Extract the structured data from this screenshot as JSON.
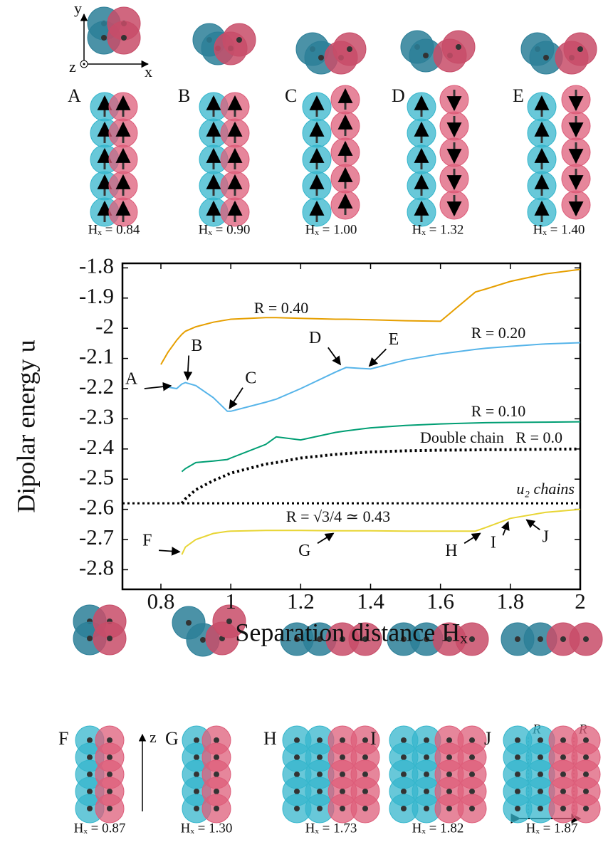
{
  "top_axes": {
    "x": "x",
    "y": "y",
    "z": "z"
  },
  "panels_top": [
    {
      "letter": "A",
      "label": "Hₓ = 0.84"
    },
    {
      "letter": "B",
      "label": "Hₓ = 0.90"
    },
    {
      "letter": "C",
      "label": "Hₓ = 1.00"
    },
    {
      "letter": "D",
      "label": "Hₓ = 1.32"
    },
    {
      "letter": "E",
      "label": "Hₓ = 1.40"
    }
  ],
  "chart_data": {
    "type": "line",
    "x_label": "Separation distance Hₓ",
    "y_label": "Dipolar energy u",
    "x": [
      0.8,
      0.82,
      0.845,
      0.86,
      0.87,
      0.9,
      0.95,
      0.99,
      1.0,
      1.1,
      1.13,
      1.2,
      1.3,
      1.33,
      1.4,
      1.5,
      1.6,
      1.7,
      1.73,
      1.8,
      1.9,
      2.0
    ],
    "series": [
      {
        "name": "R = 0.40",
        "color": "#e69f00",
        "style": "solid",
        "values": [
          -2.12,
          -2.08,
          -2.04,
          -2.02,
          -2.01,
          -1.995,
          -1.98,
          -1.972,
          -1.97,
          -1.965,
          -1.965,
          -1.967,
          -1.97,
          -1.97,
          -1.972,
          -1.975,
          -1.977,
          -1.88,
          -1.87,
          -1.845,
          -1.82,
          -1.805
        ]
      },
      {
        "name": "R = 0.20",
        "color": "#56b4e9",
        "style": "solid",
        "values": [
          null,
          -2.195,
          -2.2,
          -2.185,
          -2.18,
          -2.19,
          -2.23,
          -2.275,
          -2.275,
          -2.245,
          -2.235,
          -2.2,
          -2.145,
          -2.13,
          -2.135,
          -2.105,
          -2.085,
          -2.07,
          -2.066,
          -2.06,
          -2.052,
          -2.048
        ]
      },
      {
        "name": "R = 0.10",
        "color": "#009e73",
        "style": "solid",
        "values": [
          null,
          null,
          null,
          -2.475,
          -2.465,
          -2.445,
          -2.44,
          -2.435,
          -2.43,
          -2.385,
          -2.36,
          -2.37,
          -2.345,
          -2.34,
          -2.33,
          -2.322,
          -2.317,
          -2.314,
          -2.313,
          -2.312,
          -2.311,
          -2.31
        ]
      },
      {
        "name": "Double chain   R = 0.0",
        "color": "#000000",
        "style": "dotted",
        "values": [
          null,
          null,
          null,
          -2.58,
          -2.565,
          -2.535,
          -2.505,
          -2.485,
          -2.48,
          -2.45,
          -2.445,
          -2.43,
          -2.418,
          -2.415,
          -2.41,
          -2.406,
          -2.404,
          -2.403,
          -2.402,
          -2.402,
          -2.401,
          -2.4
        ]
      },
      {
        "name": "R = √3/4 ≃ 0.43",
        "color": "#e8d534",
        "style": "solid",
        "values": [
          null,
          null,
          null,
          -2.75,
          -2.725,
          -2.7,
          -2.68,
          -2.673,
          -2.672,
          -2.67,
          -2.67,
          -2.67,
          -2.671,
          -2.671,
          -2.671,
          -2.672,
          -2.672,
          -2.672,
          -2.66,
          -2.63,
          -2.61,
          -2.6
        ]
      }
    ],
    "hlines": [
      {
        "name": "u₂ chains",
        "value": -2.58,
        "color": "#000000",
        "style": "dotted"
      }
    ],
    "annotations": [
      {
        "text": "A",
        "x": 0.835,
        "y": -2.2
      },
      {
        "text": "B",
        "x": 0.87,
        "y": -2.18
      },
      {
        "text": "C",
        "x": 0.99,
        "y": -2.275
      },
      {
        "text": "D",
        "x": 1.32,
        "y": -2.13
      },
      {
        "text": "E",
        "x": 1.39,
        "y": -2.135
      },
      {
        "text": "F",
        "x": 0.86,
        "y": -2.75
      },
      {
        "text": "G",
        "x": 1.3,
        "y": -2.67
      },
      {
        "text": "H",
        "x": 1.72,
        "y": -2.67
      },
      {
        "text": "I",
        "x": 1.8,
        "y": -2.632
      },
      {
        "text": "J",
        "x": 1.84,
        "y": -2.625
      }
    ],
    "xlim": [
      0.69,
      2.0
    ],
    "xticks": [
      0.8,
      1,
      1.2,
      1.4,
      1.6,
      1.8,
      2
    ],
    "ylim": [
      -2.865,
      -1.785
    ],
    "yticks": [
      -1.8,
      -1.9,
      -2,
      -2.1,
      -2.2,
      -2.3,
      -2.4,
      -2.5,
      -2.6,
      -2.7,
      -2.8
    ]
  },
  "panels_bottom": [
    {
      "letter": "F",
      "label": "Hₓ = 0.87"
    },
    {
      "letter": "G",
      "label": "Hₓ = 1.30"
    },
    {
      "letter": "H",
      "label": "Hₓ = 1.73"
    },
    {
      "letter": "I",
      "label": "Hₓ = 1.82"
    },
    {
      "letter": "J",
      "label": "Hₓ = 1.87"
    }
  ],
  "bottom_axis": "z",
  "panel_j": {
    "r_left": "R",
    "r_right": "R"
  }
}
